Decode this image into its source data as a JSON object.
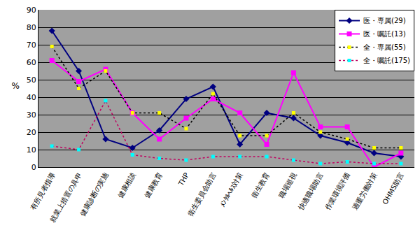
{
  "chart_data": {
    "type": "line",
    "y_label": "%",
    "categories": [
      "有所見者指導",
      "就業上措置の具申",
      "健康診断の実施",
      "健康相談",
      "健康教育",
      "THP",
      "衛生委員会助言",
      "ﾒﾝﾀﾙﾍﾙｽ対策",
      "衛生教育",
      "職場巡視",
      "快適職場助言",
      "作業環境評価",
      "過重労働対策",
      "OHMS助言"
    ],
    "series": [
      {
        "name": "医・専属(29)",
        "color": "#000080",
        "marker": "diamond",
        "line_style": "solid",
        "values": [
          78,
          55,
          16,
          11,
          21,
          39,
          46,
          13,
          31,
          28,
          18,
          14,
          8,
          6
        ]
      },
      {
        "name": "医・嘱託(13)",
        "color": "#ff00ff",
        "marker": "square",
        "line_style": "solid",
        "values": [
          61,
          49,
          56,
          31,
          16,
          28,
          39,
          31,
          13,
          54,
          23,
          23,
          0,
          8
        ]
      },
      {
        "name": "全・専属(55)",
        "color": "#000000",
        "marker": "square",
        "line_style": "dot",
        "values": [
          69,
          45,
          55,
          31,
          31,
          22,
          42,
          18,
          18,
          31,
          20,
          16,
          11,
          11
        ]
      },
      {
        "name": "全・嘱託(175)",
        "color": "#c00060",
        "marker": "square",
        "line_style": "dot",
        "values": [
          12,
          10,
          38,
          7,
          5,
          4,
          6,
          6,
          6,
          4,
          2,
          3,
          2,
          2
        ]
      }
    ],
    "ylim": [
      0,
      90
    ],
    "yticks": [
      0,
      10,
      20,
      30,
      40,
      50,
      60,
      70,
      80,
      90
    ],
    "grid": true,
    "legend": "top-right"
  }
}
